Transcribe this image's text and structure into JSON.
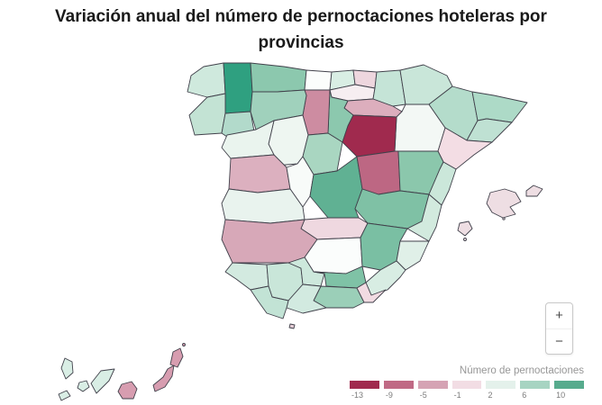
{
  "title": "Variación anual del número de pernoctaciones hoteleras por provincias",
  "map_controls": {
    "zoom_in": "+",
    "zoom_out": "−"
  },
  "legend": {
    "title": "Número de pernoctaciones",
    "steps": [
      {
        "label": "-13",
        "color": "#a02a4e"
      },
      {
        "label": "-9",
        "color": "#c06a85"
      },
      {
        "label": "-5",
        "color": "#d5a3b4"
      },
      {
        "label": "-1",
        "color": "#f2dde4"
      },
      {
        "label": "2",
        "color": "#e4f1eb"
      },
      {
        "label": "6",
        "color": "#a7d4c2"
      },
      {
        "label": "10",
        "color": "#57ab8d"
      }
    ]
  },
  "chart_data": {
    "type": "choropleth_map",
    "title": "Variación anual del número de pernoctaciones hoteleras por provincias",
    "region": "Spain (provinces, incl. Balearic and Canary Islands)",
    "value_label": "Número de pernoctaciones",
    "value_range": [
      -13,
      10
    ],
    "legend_position": "bottom-right",
    "provinces": {
      "a_coruna": {
        "name": "A Coruña",
        "value": 3,
        "color": "#cfe9dd"
      },
      "lugo": {
        "name": "Lugo",
        "value": 10,
        "color": "#2fa080"
      },
      "pontevedra": {
        "name": "Pontevedra",
        "value": 3,
        "color": "#c3e3d4"
      },
      "ourense": {
        "name": "Ourense",
        "value": 4,
        "color": "#b2dacb"
      },
      "asturias": {
        "name": "Asturias",
        "value": 6,
        "color": "#8cc8ae"
      },
      "cantabria": {
        "name": "Cantabria",
        "value": 0,
        "color": "#fbfdfc"
      },
      "bizkaia": {
        "name": "Bizkaia",
        "value": 2,
        "color": "#d9eee4"
      },
      "gipuzkoa": {
        "name": "Gipuzkoa",
        "value": -2,
        "color": "#eed6de"
      },
      "alava": {
        "name": "Álava",
        "value": 0,
        "color": "#f6eef1"
      },
      "navarra": {
        "name": "Navarra",
        "value": 3,
        "color": "#c5e4d7"
      },
      "la_rioja": {
        "name": "La Rioja",
        "value": -4,
        "color": "#dcaebd"
      },
      "huesca": {
        "name": "Huesca",
        "value": 3,
        "color": "#c9e6d9"
      },
      "zaragoza": {
        "name": "Zaragoza",
        "value": 0,
        "color": "#f3f8f5"
      },
      "lleida": {
        "name": "Lleida",
        "value": 4,
        "color": "#b4dccb"
      },
      "girona": {
        "name": "Girona",
        "value": 5,
        "color": "#addac7"
      },
      "barcelona": {
        "name": "Barcelona",
        "value": 4,
        "color": "#bfe1d3"
      },
      "tarragona": {
        "name": "Tarragona",
        "value": -1,
        "color": "#f3dde4"
      },
      "burgos": {
        "name": "Burgos",
        "value": 6,
        "color": "#8cc8ae"
      },
      "palencia": {
        "name": "Palencia",
        "value": -6,
        "color": "#cd8ca1"
      },
      "leon": {
        "name": "León",
        "value": 5,
        "color": "#a0d1bc"
      },
      "valladolid": {
        "name": "Valladolid",
        "value": 1,
        "color": "#eef6f1"
      },
      "zamora": {
        "name": "Zamora",
        "value": 1,
        "color": "#eaf4ee"
      },
      "segovia": {
        "name": "Segovia",
        "value": 5,
        "color": "#a9d6c1"
      },
      "soria": {
        "name": "Soria",
        "value": -13,
        "color": "#a02a4e"
      },
      "salamanca": {
        "name": "Salamanca",
        "value": -4,
        "color": "#dcb0bf"
      },
      "avila": {
        "name": "Ávila",
        "value": 0,
        "color": "#f8fbf9"
      },
      "madrid": {
        "name": "Madrid",
        "value": 8,
        "color": "#60b193"
      },
      "guadalajara": {
        "name": "Guadalajara",
        "value": -9,
        "color": "#bd6783"
      },
      "teruel": {
        "name": "Teruel",
        "value": 6,
        "color": "#8bc7ac"
      },
      "castellon": {
        "name": "Castellón",
        "value": 3,
        "color": "#cbe7da"
      },
      "cuenca": {
        "name": "Cuenca",
        "value": 7,
        "color": "#7fc1a5"
      },
      "valencia": {
        "name": "Valencia",
        "value": 2,
        "color": "#d2eade"
      },
      "toledo": {
        "name": "Toledo",
        "value": -1,
        "color": "#efd8e0"
      },
      "caceres": {
        "name": "Cáceres",
        "value": 1,
        "color": "#e9f3ee"
      },
      "badajoz": {
        "name": "Badajoz",
        "value": -5,
        "color": "#d7a8b8"
      },
      "ciudad_real": {
        "name": "Ciudad Real",
        "value": 0,
        "color": "#fbfdfc"
      },
      "albacete": {
        "name": "Albacete",
        "value": 7,
        "color": "#7abfa3"
      },
      "alicante": {
        "name": "Alicante",
        "value": 2,
        "color": "#e0f0e8"
      },
      "murcia": {
        "name": "Murcia",
        "value": 2,
        "color": "#d8ede3"
      },
      "huelva": {
        "name": "Huelva",
        "value": 2,
        "color": "#d3eae0"
      },
      "sevilla": {
        "name": "Sevilla",
        "value": 3,
        "color": "#c9e6d9"
      },
      "cordoba": {
        "name": "Córdoba",
        "value": 3,
        "color": "#cde8dc"
      },
      "jaen": {
        "name": "Jaén",
        "value": 6,
        "color": "#7fc2a6"
      },
      "granada": {
        "name": "Granada",
        "value": 5,
        "color": "#9bcfb8"
      },
      "almeria": {
        "name": "Almería",
        "value": -1,
        "color": "#f1dbe2"
      },
      "malaga": {
        "name": "Málaga",
        "value": 2,
        "color": "#d2eae0"
      },
      "cadiz": {
        "name": "Cádiz",
        "value": 4,
        "color": "#c2e3d5"
      },
      "ceuta": {
        "name": "Ceuta",
        "value": -3,
        "color": "#e3ccd4"
      },
      "illes_balears": {
        "name": "Illes Balears",
        "value": -1,
        "color": "#eedee3"
      },
      "santa_cruz_de_tenerife": {
        "name": "Santa Cruz de Tenerife",
        "value": 2,
        "color": "#d9eee5"
      },
      "las_palmas": {
        "name": "Las Palmas",
        "value": -5,
        "color": "#d79db0"
      }
    }
  }
}
